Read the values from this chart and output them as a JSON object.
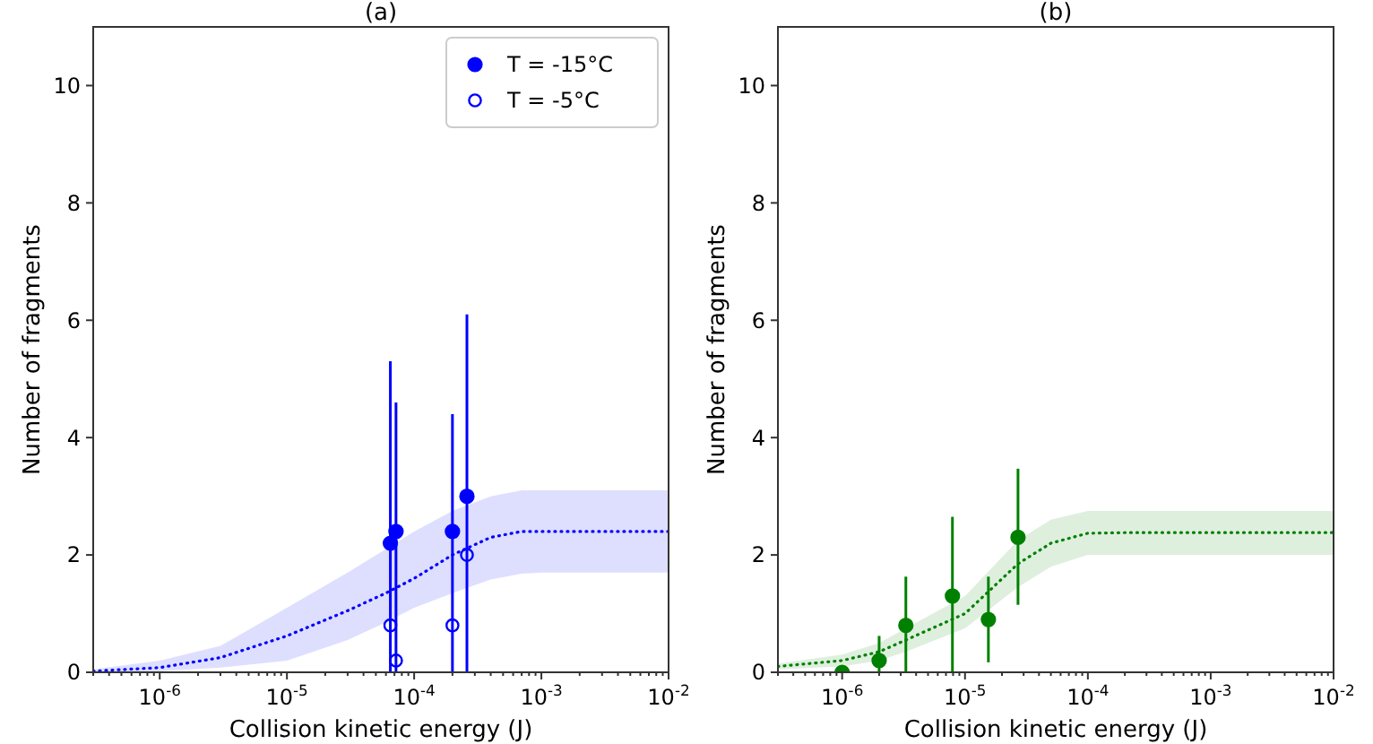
{
  "chart_data": [
    {
      "type": "scatter",
      "title": "(a)",
      "xlabel": "Collision kinetic energy (J)",
      "ylabel": "Number of fragments",
      "log": "x",
      "xlim": [
        3e-07,
        0.01
      ],
      "xticks": [
        {
          "value": 1e-06,
          "label": "10$^{-6}$"
        },
        {
          "value": 1e-05,
          "label": "10$^{-5}$"
        },
        {
          "value": 0.0001,
          "label": "10$^{-4}$"
        },
        {
          "value": 0.001,
          "label": "10$^{-3}$"
        },
        {
          "value": 0.01,
          "label": "10$^{-2}$"
        }
      ],
      "ylim": [
        0,
        11
      ],
      "yticks": [
        0,
        2,
        4,
        6,
        8,
        10
      ],
      "grid": false,
      "legend": "top right",
      "series": [
        {
          "type": "line",
          "color": "#0000ff",
          "line_style": "dotted",
          "marker": "none",
          "x": [
            3e-07,
            1e-06,
            3e-06,
            1e-05,
            3e-05,
            6e-05,
            0.0001,
            0.0002,
            0.0004,
            0.0007,
            0.001,
            0.01
          ],
          "values": [
            0.02,
            0.08,
            0.25,
            0.62,
            1.05,
            1.35,
            1.6,
            2.0,
            2.3,
            2.4,
            2.4,
            2.4
          ],
          "lower": [
            0,
            0.02,
            0.08,
            0.2,
            0.55,
            0.85,
            1.1,
            1.35,
            1.58,
            1.68,
            1.7,
            1.7
          ],
          "upper": [
            0.05,
            0.2,
            0.45,
            1.1,
            1.7,
            2.1,
            2.4,
            2.75,
            3.0,
            3.1,
            3.1,
            3.1
          ]
        },
        {
          "name": "T = -15°C",
          "color": "#0000ff",
          "marker": "circle",
          "x": [
            6.5e-05,
            7.2e-05,
            0.0002,
            0.00026
          ],
          "values": [
            2.2,
            2.4,
            2.4,
            3.0
          ],
          "errors": [
            [
              0,
              5.3
            ],
            [
              0,
              4.6
            ],
            [
              0,
              4.4
            ],
            [
              0,
              6.1
            ]
          ]
        },
        {
          "name": "T = -5°C",
          "color": "#0000ff",
          "marker": "circle-open",
          "x": [
            6.5e-05,
            7.2e-05,
            0.0002,
            0.00026
          ],
          "values": [
            0.8,
            0.2,
            0.8,
            2.0
          ]
        }
      ]
    },
    {
      "type": "scatter",
      "title": "(b)",
      "xlabel": "Collision kinetic energy (J)",
      "ylabel": "Number of fragments",
      "log": "x",
      "xlim": [
        3e-07,
        0.01
      ],
      "xticks": [
        {
          "value": 1e-06,
          "label": "10$^{-6}$"
        },
        {
          "value": 1e-05,
          "label": "10$^{-5}$"
        },
        {
          "value": 0.0001,
          "label": "10$^{-4}$"
        },
        {
          "value": 0.001,
          "label": "10$^{-3}$"
        },
        {
          "value": 0.01,
          "label": "10$^{-2}$"
        }
      ],
      "ylim": [
        0,
        11
      ],
      "yticks": [
        0,
        2,
        4,
        6,
        8,
        10
      ],
      "grid": false,
      "legend": false,
      "series": [
        {
          "type": "line",
          "color": "#008000",
          "line_style": "dotted",
          "marker": "none",
          "x": [
            3e-07,
            1e-06,
            2e-06,
            3.3e-06,
            1e-05,
            2.7e-05,
            5e-05,
            0.0001,
            0.0002,
            0.01
          ],
          "values": [
            0.1,
            0.2,
            0.35,
            0.55,
            1.0,
            1.85,
            2.2,
            2.37,
            2.38,
            2.38
          ],
          "lower": [
            0.05,
            0.1,
            0.2,
            0.35,
            0.75,
            1.45,
            1.8,
            2.0,
            2.0,
            2.0
          ],
          "upper": [
            0.15,
            0.3,
            0.5,
            0.75,
            1.3,
            2.25,
            2.6,
            2.75,
            2.75,
            2.75
          ]
        },
        {
          "color": "#008000",
          "marker": "circle",
          "x": [
            1e-06,
            2e-06,
            3.3e-06,
            7.9e-06,
            1.55e-05,
            2.7e-05
          ],
          "values": [
            0,
            0.2,
            0.8,
            1.3,
            0.9,
            2.3
          ],
          "errors": [
            null,
            [
              0,
              0.62
            ],
            [
              0,
              1.63
            ],
            [
              0,
              2.65
            ],
            [
              0.17,
              1.63
            ],
            [
              1.15,
              3.47
            ]
          ]
        }
      ]
    }
  ]
}
